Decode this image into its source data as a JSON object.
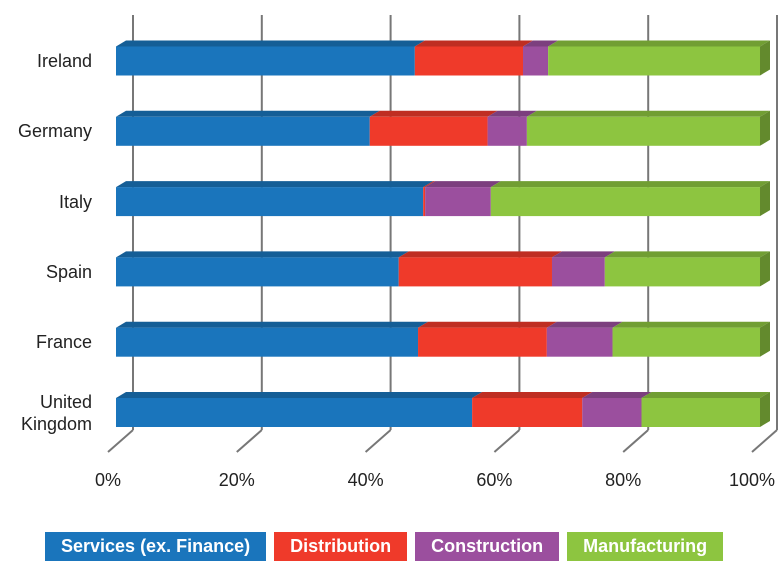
{
  "chart_data": {
    "type": "stacked_bar_horizontal",
    "categories": [
      "Ireland",
      "Germany",
      "Italy",
      "Spain",
      "France",
      "United Kingdom"
    ],
    "series": [
      {
        "name": "Services (ex. Finance)",
        "color": "#1a75bc",
        "values": [
          46.4,
          39.4,
          47.7,
          43.9,
          46.9,
          55.3
        ]
      },
      {
        "name": "Distribution",
        "color": "#ef3a2a",
        "values": [
          16.8,
          18.3,
          0.3,
          23.8,
          20.0,
          17.1
        ]
      },
      {
        "name": "Construction",
        "color": "#9b4f9e",
        "values": [
          3.9,
          6.1,
          10.2,
          8.2,
          10.2,
          9.2
        ]
      },
      {
        "name": "Manufacturing",
        "color": "#8dc540",
        "values": [
          32.9,
          36.2,
          41.8,
          24.1,
          22.9,
          18.4
        ]
      }
    ],
    "xlim": [
      0,
      100
    ],
    "xticks": [
      {
        "value": 0,
        "label": "0%"
      },
      {
        "value": 20,
        "label": "20%"
      },
      {
        "value": 40,
        "label": "40%"
      },
      {
        "value": 60,
        "label": "60%"
      },
      {
        "value": 80,
        "label": "80%"
      },
      {
        "value": 100,
        "label": "100%"
      }
    ],
    "grid": true,
    "legend": "bottom"
  }
}
